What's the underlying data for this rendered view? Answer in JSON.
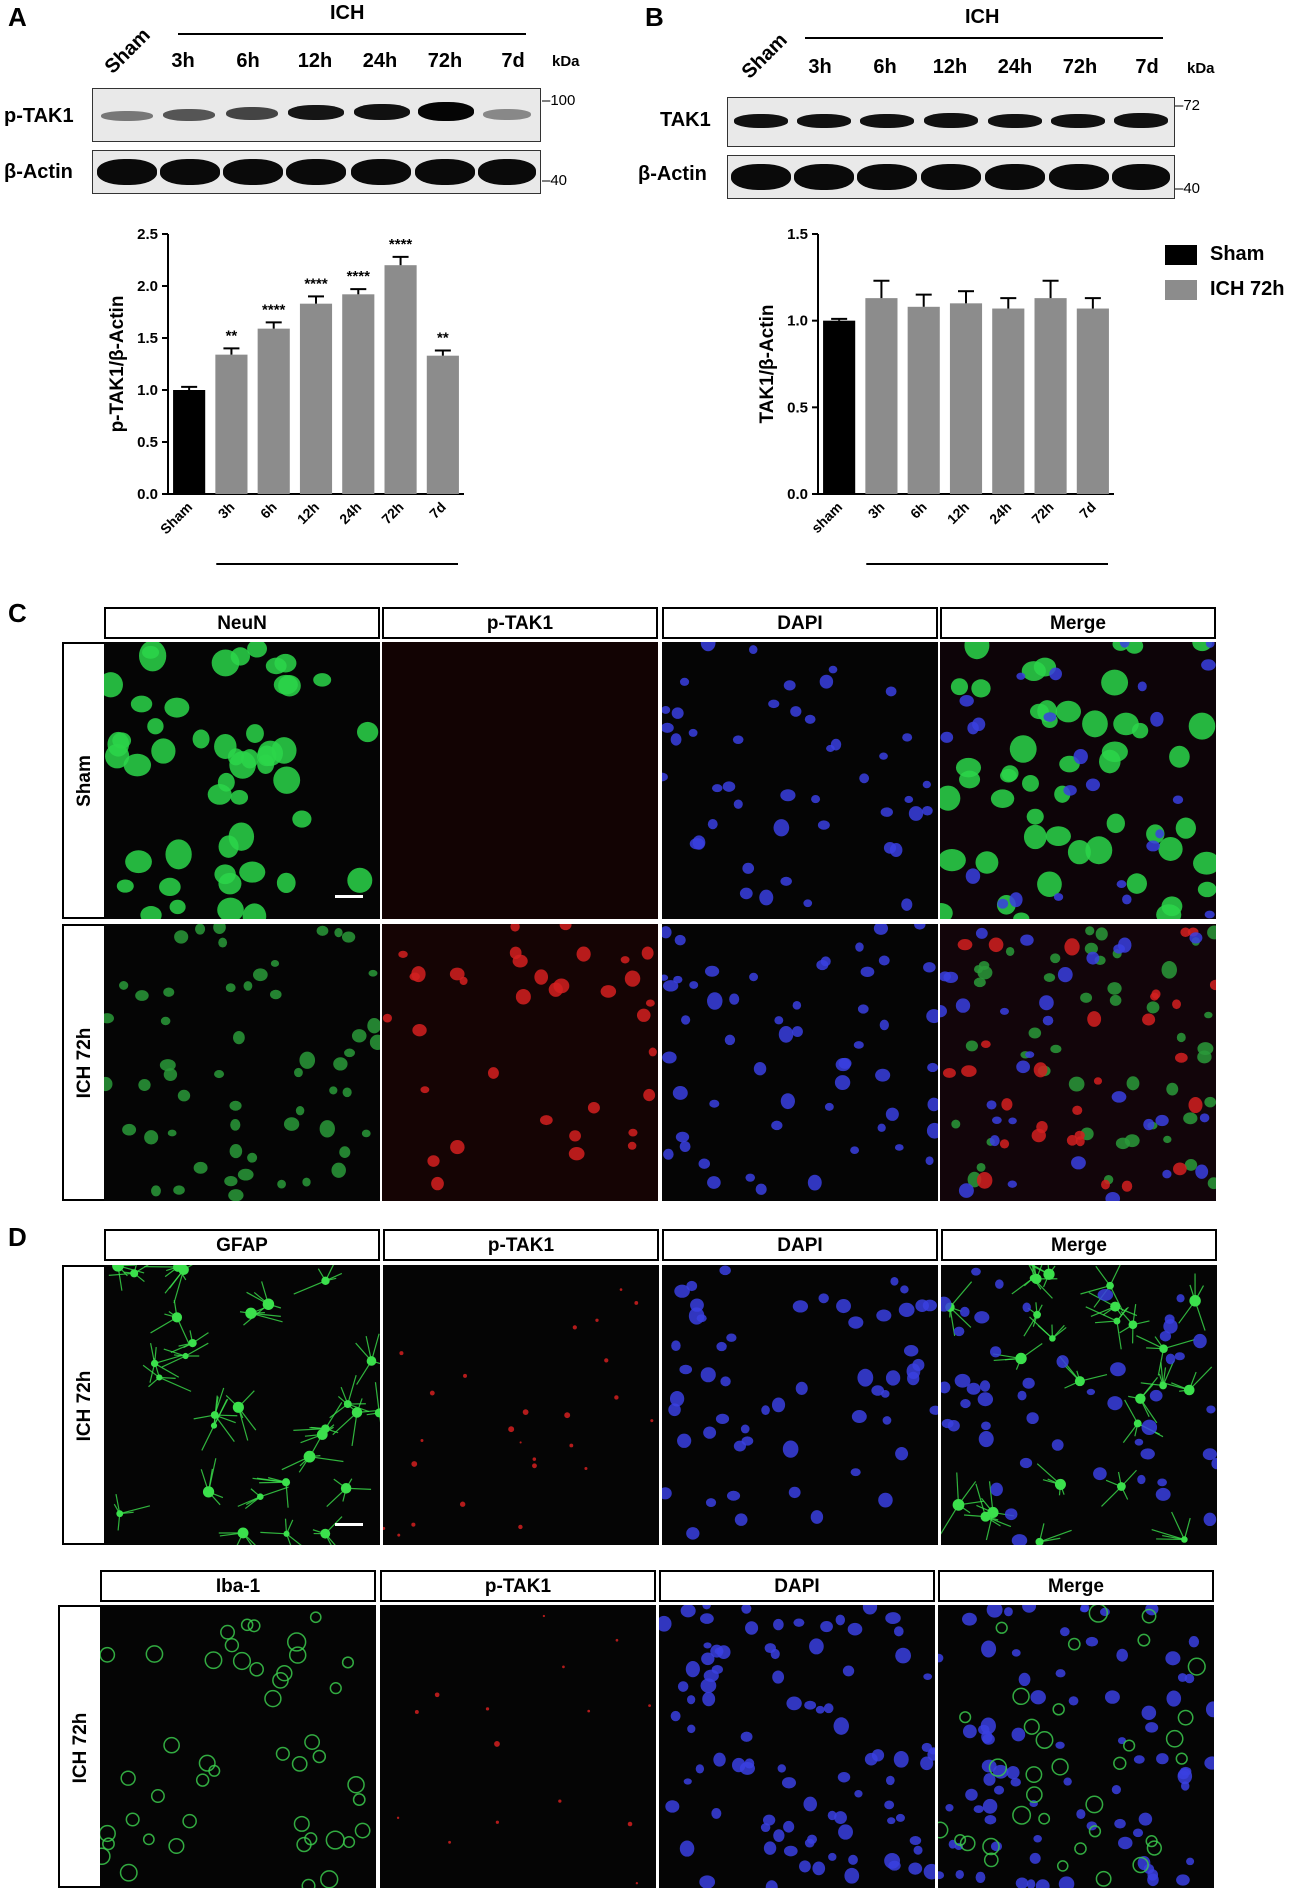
{
  "panels": {
    "A": "A",
    "B": "B",
    "C": "C",
    "D": "D"
  },
  "blotA": {
    "group": "ICH",
    "lanes": [
      "Sham",
      "3h",
      "6h",
      "12h",
      "24h",
      "72h",
      "7d"
    ],
    "kda": "kDa",
    "rows": [
      {
        "label": "p-TAK1",
        "mw": "100"
      },
      {
        "label": "β-Actin",
        "mw": "40"
      }
    ]
  },
  "blotB": {
    "group": "ICH",
    "lanes": [
      "Sham",
      "3h",
      "6h",
      "12h",
      "24h",
      "72h",
      "7d"
    ],
    "kda": "kDa",
    "rows": [
      {
        "label": "TAK1",
        "mw": "72"
      },
      {
        "label": "β-Actin",
        "mw": "40"
      }
    ]
  },
  "legend": {
    "items": [
      {
        "label": "Sham",
        "color": "#000000"
      },
      {
        "label": "ICH 72h",
        "color": "#8c8c8c"
      }
    ]
  },
  "chart_data": [
    {
      "type": "bar",
      "categories": [
        "Sham",
        "3h",
        "6h",
        "12h",
        "24h",
        "72h",
        "7d"
      ],
      "values": [
        1.0,
        1.34,
        1.59,
        1.83,
        1.92,
        2.2,
        1.33
      ],
      "errors": [
        0.03,
        0.06,
        0.06,
        0.07,
        0.05,
        0.08,
        0.05
      ],
      "significance": [
        "",
        "**",
        "****",
        "****",
        "****",
        "****",
        "**"
      ],
      "colors": [
        "#000000",
        "#8c8c8c",
        "#8c8c8c",
        "#8c8c8c",
        "#8c8c8c",
        "#8c8c8c",
        "#8c8c8c"
      ],
      "ylabel": "p-TAK1/β-Actin",
      "ylim": [
        0,
        2.5
      ],
      "yticks": [
        "0.0",
        "0.5",
        "1.0",
        "1.5",
        "2.0",
        "2.5"
      ],
      "group_label": "ICH"
    },
    {
      "type": "bar",
      "categories": [
        "sham",
        "3h",
        "6h",
        "12h",
        "24h",
        "72h",
        "7d"
      ],
      "values": [
        1.0,
        1.13,
        1.08,
        1.1,
        1.07,
        1.13,
        1.07
      ],
      "errors": [
        0.01,
        0.1,
        0.07,
        0.07,
        0.06,
        0.1,
        0.06
      ],
      "significance": [
        "",
        "",
        "",
        "",
        "",
        "",
        ""
      ],
      "colors": [
        "#000000",
        "#8c8c8c",
        "#8c8c8c",
        "#8c8c8c",
        "#8c8c8c",
        "#8c8c8c",
        "#8c8c8c"
      ],
      "ylabel": "TAK1/β-Actin",
      "ylim": [
        0,
        1.5
      ],
      "yticks": [
        "0.0",
        "0.5",
        "1.0",
        "1.5"
      ],
      "group_label": "ICH"
    }
  ],
  "panelC": {
    "columns": [
      "NeuN",
      "p-TAK1",
      "DAPI",
      "Merge"
    ],
    "rows": [
      "Sham",
      "ICH 72h"
    ]
  },
  "panelD1": {
    "columns": [
      "GFAP",
      "p-TAK1",
      "DAPI",
      "Merge"
    ],
    "row": "ICH 72h"
  },
  "panelD2": {
    "columns": [
      "Iba-1",
      "p-TAK1",
      "DAPI",
      "Merge"
    ],
    "row": "ICH 72h"
  }
}
